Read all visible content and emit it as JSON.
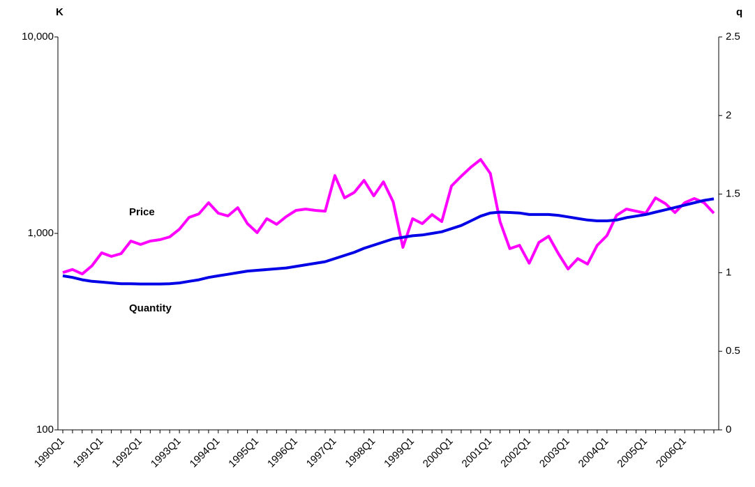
{
  "chart_data": {
    "type": "line",
    "y_unit_label": "K",
    "y2_unit_label": "q",
    "categories": [
      "1990Q1",
      null,
      null,
      null,
      "1991Q1",
      null,
      null,
      null,
      "1992Q1",
      null,
      null,
      null,
      "1993Q1",
      null,
      null,
      null,
      "1994Q1",
      null,
      null,
      null,
      "1995Q1",
      null,
      null,
      null,
      "1996Q1",
      null,
      null,
      null,
      "1997Q1",
      null,
      null,
      null,
      "1998Q1",
      null,
      null,
      null,
      "1999Q1",
      null,
      null,
      null,
      "2000Q1",
      null,
      null,
      null,
      "2001Q1",
      null,
      null,
      null,
      "2002Q1",
      null,
      null,
      null,
      "2003Q1",
      null,
      null,
      null,
      "2004Q1",
      null,
      null,
      null,
      "2005Q1",
      null,
      null,
      null,
      "2006Q1",
      null,
      null,
      null
    ],
    "series": [
      {
        "name": "Price",
        "color": "#ff00ff",
        "axis": "y",
        "values": [
          632,
          655,
          622,
          684,
          796,
          764,
          789,
          914,
          878,
          914,
          929,
          960,
          1050,
          1207,
          1257,
          1432,
          1267,
          1227,
          1352,
          1121,
          1009,
          1188,
          1113,
          1218,
          1309,
          1330,
          1309,
          1298,
          1968,
          1517,
          1618,
          1862,
          1553,
          1830,
          1445,
          849,
          1188,
          1121,
          1247,
          1149,
          1742,
          1954,
          2173,
          2378,
          2018,
          1149,
          836,
          870,
          705,
          899,
          967,
          789,
          659,
          744,
          698,
          870,
          975,
          1237,
          1330,
          1298,
          1267,
          1517,
          1420,
          1277,
          1432,
          1505,
          1432,
          1267
        ]
      },
      {
        "name": "Quantity",
        "color": "#0000e6",
        "axis": "y2",
        "values": [
          0.98,
          0.97,
          0.955,
          0.945,
          0.94,
          0.935,
          0.93,
          0.93,
          0.928,
          0.928,
          0.928,
          0.93,
          0.935,
          0.945,
          0.955,
          0.97,
          0.98,
          0.99,
          1.0,
          1.01,
          1.015,
          1.02,
          1.025,
          1.03,
          1.04,
          1.05,
          1.06,
          1.07,
          1.09,
          1.11,
          1.13,
          1.155,
          1.175,
          1.195,
          1.215,
          1.225,
          1.235,
          1.24,
          1.25,
          1.26,
          1.28,
          1.3,
          1.33,
          1.36,
          1.38,
          1.385,
          1.383,
          1.38,
          1.37,
          1.37,
          1.37,
          1.365,
          1.355,
          1.345,
          1.335,
          1.33,
          1.33,
          1.335,
          1.35,
          1.36,
          1.37,
          1.385,
          1.4,
          1.415,
          1.43,
          1.445,
          1.46,
          1.47
        ]
      }
    ],
    "yscale": "log",
    "ylim": [
      100,
      10000
    ],
    "yticks": [
      100,
      {
        "value": 1000,
        "label": "1,000"
      },
      {
        "value": 10000,
        "label": "10,000"
      }
    ],
    "y2lim": [
      0,
      2.5
    ],
    "y2ticks": [
      0,
      0.5,
      1,
      1.5,
      2,
      2.5
    ],
    "grid": false
  }
}
